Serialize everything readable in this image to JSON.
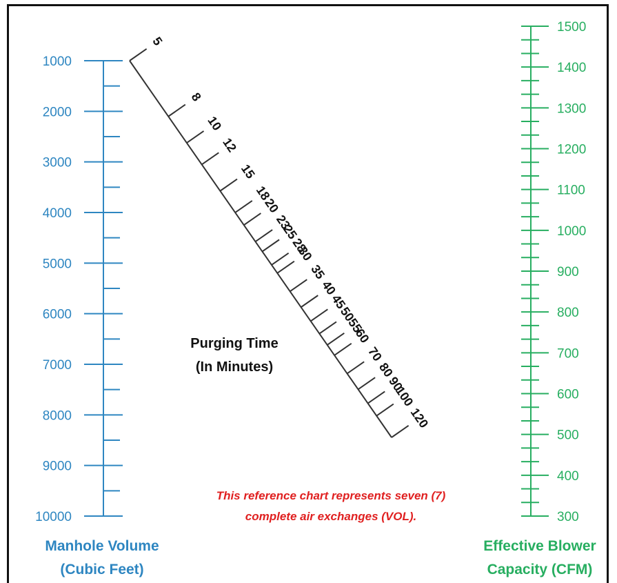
{
  "colors": {
    "left": "#2e86c1",
    "right": "#27ae60",
    "middle": "#333333",
    "note": "#e02020"
  },
  "left_scale": {
    "title_line1": "Manhole Volume",
    "title_line2": "(Cubic Feet)",
    "labels": [
      "1000",
      "2000",
      "3000",
      "4000",
      "5000",
      "6000",
      "7000",
      "8000",
      "9000",
      "10000"
    ]
  },
  "right_scale": {
    "title_line1": "Effective Blower",
    "title_line2": "Capacity (CFM)",
    "labels": [
      "1500",
      "1400",
      "1300",
      "1200",
      "1100",
      "1000",
      "900",
      "800",
      "700",
      "600",
      "500",
      "400",
      "300"
    ]
  },
  "middle_scale": {
    "title_line1": "Purging Time",
    "title_line2": "(In Minutes)",
    "labels": [
      "5",
      "8",
      "10",
      "12",
      "15",
      "18",
      "20",
      "23",
      "25",
      "28",
      "30",
      "35",
      "40",
      "45",
      "50",
      "55",
      "60",
      "70",
      "80",
      "90",
      "100",
      "120"
    ]
  },
  "note": {
    "line1": "This reference chart represents seven (7)",
    "line2": "complete air exchanges (VOL)."
  }
}
